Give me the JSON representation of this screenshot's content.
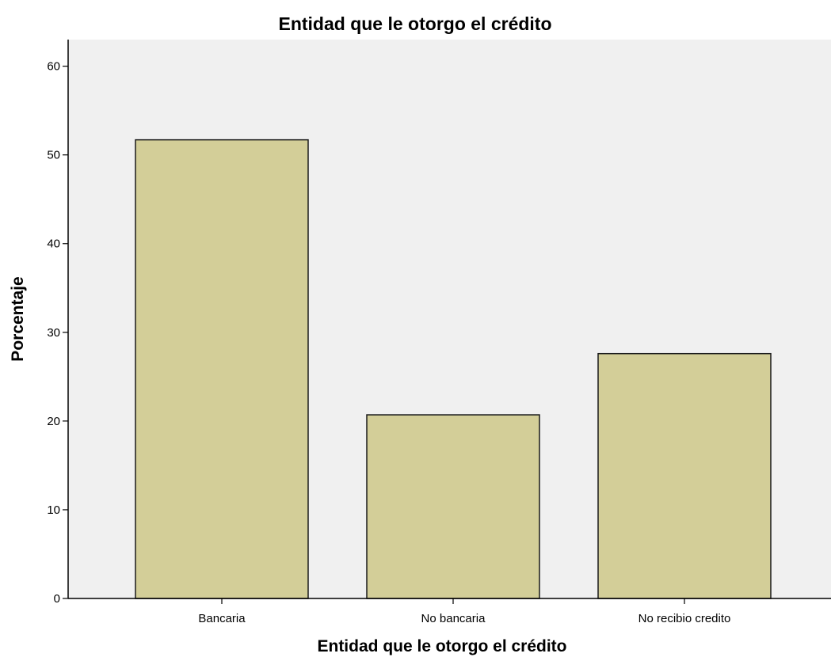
{
  "chart_data": {
    "type": "bar",
    "title": "Entidad  que le otorgo el crédito",
    "xlabel": "Entidad  que le otorgo el crédito",
    "ylabel": "Porcentaje",
    "categories": [
      "Bancaria",
      "No bancaria",
      "No recibio credito"
    ],
    "values": [
      51.7,
      20.7,
      27.6
    ],
    "ylim": [
      0,
      63
    ],
    "yticks": [
      0,
      10,
      20,
      30,
      40,
      50,
      60
    ],
    "grid": false,
    "legend": "none",
    "colors": {
      "bar_fill": "#d3ce98",
      "bar_stroke": "#1a1a1a",
      "plot_background": "#f0f0f0",
      "axis": "#000000"
    }
  }
}
